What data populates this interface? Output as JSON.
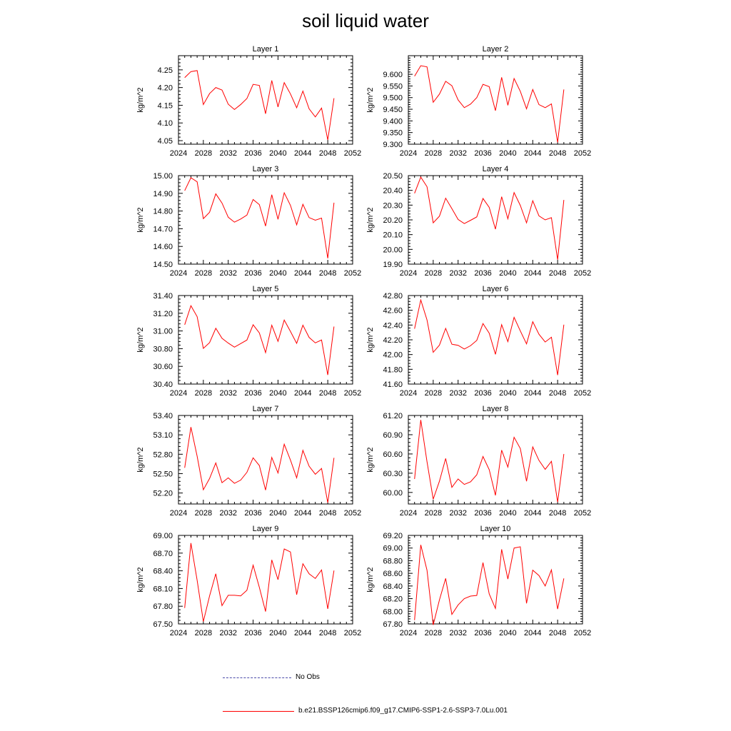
{
  "title": "soil liquid water",
  "colors": {
    "model_line": "#ff0000",
    "obs_line": "#4a4aa8",
    "axis": "#000000"
  },
  "legend": {
    "obs_label": "No Obs",
    "model_label": "b.e21.BSSP126cmip6.f09_g17.CMIP6-SSP1-2.6-SSP3-7.0Lu.001"
  },
  "chart_data": [
    {
      "type": "line",
      "title": "Layer 1",
      "ylabel": "kg/m^2",
      "xlim": [
        2024,
        2052
      ],
      "xticks": [
        2024,
        2028,
        2032,
        2036,
        2040,
        2044,
        2048,
        2052
      ],
      "ylim": [
        4.04,
        4.29
      ],
      "yticks": [
        "4.05",
        "4.10",
        "4.15",
        "4.20",
        "4.25"
      ],
      "x": [
        2025,
        2026,
        2027,
        2028,
        2029,
        2030,
        2031,
        2032,
        2033,
        2034,
        2035,
        2036,
        2037,
        2038,
        2039,
        2040,
        2041,
        2042,
        2043,
        2044,
        2045,
        2046,
        2047,
        2048,
        2049
      ],
      "series": [
        {
          "values": [
            4.228,
            4.245,
            4.248,
            4.152,
            4.183,
            4.2,
            4.193,
            4.153,
            4.138,
            4.152,
            4.169,
            4.209,
            4.206,
            4.126,
            4.22,
            4.145,
            4.214,
            4.182,
            4.143,
            4.19,
            4.14,
            4.117,
            4.142,
            4.052,
            4.17
          ]
        }
      ]
    },
    {
      "type": "line",
      "title": "Layer 2",
      "ylabel": "kg/m^2",
      "xlim": [
        2024,
        2052
      ],
      "xticks": [
        2024,
        2028,
        2032,
        2036,
        2040,
        2044,
        2048,
        2052
      ],
      "ylim": [
        9.3,
        9.68
      ],
      "yticks": [
        "9.300",
        "9.350",
        "9.400",
        "9.450",
        "9.500",
        "9.550",
        "9.600"
      ],
      "x": [
        2025,
        2026,
        2027,
        2028,
        2029,
        2030,
        2031,
        2032,
        2033,
        2034,
        2035,
        2036,
        2037,
        2038,
        2039,
        2040,
        2041,
        2042,
        2043,
        2044,
        2045,
        2046,
        2047,
        2048,
        2049
      ],
      "series": [
        {
          "values": [
            9.592,
            9.637,
            9.632,
            9.48,
            9.515,
            9.57,
            9.551,
            9.49,
            9.457,
            9.472,
            9.5,
            9.557,
            9.547,
            9.444,
            9.587,
            9.467,
            9.582,
            9.527,
            9.452,
            9.535,
            9.47,
            9.457,
            9.473,
            9.308,
            9.535
          ]
        }
      ]
    },
    {
      "type": "line",
      "title": "Layer 3",
      "ylabel": "kg/m^2",
      "xlim": [
        2024,
        2052
      ],
      "xticks": [
        2024,
        2028,
        2032,
        2036,
        2040,
        2044,
        2048,
        2052
      ],
      "ylim": [
        14.5,
        15.0
      ],
      "yticks": [
        "14.50",
        "14.60",
        "14.70",
        "14.80",
        "14.90",
        "15.00"
      ],
      "x": [
        2025,
        2026,
        2027,
        2028,
        2029,
        2030,
        2031,
        2032,
        2033,
        2034,
        2035,
        2036,
        2037,
        2038,
        2039,
        2040,
        2041,
        2042,
        2043,
        2044,
        2045,
        2046,
        2047,
        2048,
        2049
      ],
      "series": [
        {
          "values": [
            14.915,
            14.988,
            14.965,
            14.757,
            14.793,
            14.897,
            14.845,
            14.765,
            14.737,
            14.755,
            14.777,
            14.865,
            14.836,
            14.715,
            14.892,
            14.753,
            14.903,
            14.832,
            14.722,
            14.838,
            14.763,
            14.748,
            14.76,
            14.533,
            14.847
          ]
        }
      ]
    },
    {
      "type": "line",
      "title": "Layer 4",
      "ylabel": "kg/m^2",
      "xlim": [
        2024,
        2052
      ],
      "xticks": [
        2024,
        2028,
        2032,
        2036,
        2040,
        2044,
        2048,
        2052
      ],
      "ylim": [
        19.9,
        20.5
      ],
      "yticks": [
        "19.90",
        "20.00",
        "20.10",
        "20.20",
        "20.30",
        "20.40",
        "20.50"
      ],
      "x": [
        2025,
        2026,
        2027,
        2028,
        2029,
        2030,
        2031,
        2032,
        2033,
        2034,
        2035,
        2036,
        2037,
        2038,
        2039,
        2040,
        2041,
        2042,
        2043,
        2044,
        2045,
        2046,
        2047,
        2048,
        2049
      ],
      "series": [
        {
          "values": [
            20.38,
            20.49,
            20.425,
            20.18,
            20.225,
            20.347,
            20.276,
            20.203,
            20.175,
            20.197,
            20.22,
            20.345,
            20.285,
            20.137,
            20.357,
            20.207,
            20.385,
            20.298,
            20.18,
            20.33,
            20.227,
            20.2,
            20.215,
            19.93,
            20.335
          ]
        }
      ]
    },
    {
      "type": "line",
      "title": "Layer 5",
      "ylabel": "kg/m^2",
      "xlim": [
        2024,
        2052
      ],
      "xticks": [
        2024,
        2028,
        2032,
        2036,
        2040,
        2044,
        2048,
        2052
      ],
      "ylim": [
        30.4,
        31.4
      ],
      "yticks": [
        "30.40",
        "30.60",
        "30.80",
        "31.00",
        "31.20",
        "31.40"
      ],
      "x": [
        2025,
        2026,
        2027,
        2028,
        2029,
        2030,
        2031,
        2032,
        2033,
        2034,
        2035,
        2036,
        2037,
        2038,
        2039,
        2040,
        2041,
        2042,
        2043,
        2044,
        2045,
        2046,
        2047,
        2048,
        2049
      ],
      "series": [
        {
          "values": [
            31.07,
            31.285,
            31.162,
            30.803,
            30.868,
            31.03,
            30.917,
            30.863,
            30.817,
            30.857,
            30.897,
            31.07,
            30.978,
            30.755,
            31.065,
            30.882,
            31.123,
            30.995,
            30.86,
            31.065,
            30.927,
            30.865,
            30.898,
            30.503,
            31.05
          ]
        }
      ]
    },
    {
      "type": "line",
      "title": "Layer 6",
      "ylabel": "kg/m^2",
      "xlim": [
        2024,
        2052
      ],
      "xticks": [
        2024,
        2028,
        2032,
        2036,
        2040,
        2044,
        2048,
        2052
      ],
      "ylim": [
        41.6,
        42.8
      ],
      "yticks": [
        "41.60",
        "41.80",
        "42.00",
        "42.20",
        "42.40",
        "42.60",
        "42.80"
      ],
      "x": [
        2025,
        2026,
        2027,
        2028,
        2029,
        2030,
        2031,
        2032,
        2033,
        2034,
        2035,
        2036,
        2037,
        2038,
        2039,
        2040,
        2041,
        2042,
        2043,
        2044,
        2045,
        2046,
        2047,
        2048,
        2049
      ],
      "series": [
        {
          "values": [
            42.35,
            42.74,
            42.47,
            42.03,
            42.128,
            42.355,
            42.14,
            42.125,
            42.075,
            42.12,
            42.192,
            42.42,
            42.29,
            42.003,
            42.405,
            42.175,
            42.505,
            42.32,
            42.145,
            42.445,
            42.275,
            42.17,
            42.235,
            41.722,
            42.405
          ]
        }
      ]
    },
    {
      "type": "line",
      "title": "Layer 7",
      "ylabel": "kg/m^2",
      "xlim": [
        2024,
        2052
      ],
      "xticks": [
        2024,
        2028,
        2032,
        2036,
        2040,
        2044,
        2048,
        2052
      ],
      "ylim": [
        52.03,
        53.4
      ],
      "yticks": [
        "52.20",
        "52.50",
        "52.80",
        "53.10",
        "53.40"
      ],
      "x": [
        2025,
        2026,
        2027,
        2028,
        2029,
        2030,
        2031,
        2032,
        2033,
        2034,
        2035,
        2036,
        2037,
        2038,
        2039,
        2040,
        2041,
        2042,
        2043,
        2044,
        2045,
        2046,
        2047,
        2048,
        2049
      ],
      "series": [
        {
          "values": [
            52.59,
            53.22,
            52.77,
            52.25,
            52.425,
            52.665,
            52.36,
            52.435,
            52.35,
            52.4,
            52.52,
            52.745,
            52.625,
            52.245,
            52.75,
            52.51,
            52.955,
            52.71,
            52.435,
            52.86,
            52.615,
            52.49,
            52.58,
            52.05,
            52.745
          ]
        }
      ]
    },
    {
      "type": "line",
      "title": "Layer 8",
      "ylabel": "kg/m^2",
      "xlim": [
        2024,
        2052
      ],
      "xticks": [
        2024,
        2028,
        2032,
        2036,
        2040,
        2044,
        2048,
        2052
      ],
      "ylim": [
        59.82,
        61.2
      ],
      "yticks": [
        "60.00",
        "60.30",
        "60.60",
        "60.90",
        "61.20"
      ],
      "x": [
        2025,
        2026,
        2027,
        2028,
        2029,
        2030,
        2031,
        2032,
        2033,
        2034,
        2035,
        2036,
        2037,
        2038,
        2039,
        2040,
        2041,
        2042,
        2043,
        2044,
        2045,
        2046,
        2047,
        2048,
        2049
      ],
      "series": [
        {
          "values": [
            60.21,
            61.13,
            60.48,
            59.895,
            60.175,
            60.53,
            60.08,
            60.21,
            60.125,
            60.165,
            60.275,
            60.56,
            60.355,
            59.955,
            60.66,
            60.395,
            60.86,
            60.685,
            60.175,
            60.71,
            60.5,
            60.36,
            60.485,
            59.85,
            60.6
          ]
        }
      ]
    },
    {
      "type": "line",
      "title": "Layer 9",
      "ylabel": "kg/m^2",
      "xlim": [
        2024,
        2052
      ],
      "xticks": [
        2024,
        2028,
        2032,
        2036,
        2040,
        2044,
        2048,
        2052
      ],
      "ylim": [
        67.5,
        69.0
      ],
      "yticks": [
        "67.50",
        "67.80",
        "68.10",
        "68.40",
        "68.70",
        "69.00"
      ],
      "x": [
        2025,
        2026,
        2027,
        2028,
        2029,
        2030,
        2031,
        2032,
        2033,
        2034,
        2035,
        2036,
        2037,
        2038,
        2039,
        2040,
        2041,
        2042,
        2043,
        2044,
        2045,
        2046,
        2047,
        2048,
        2049
      ],
      "series": [
        {
          "values": [
            67.77,
            68.87,
            68.24,
            67.54,
            67.975,
            68.35,
            67.81,
            67.985,
            67.985,
            67.975,
            68.07,
            68.495,
            68.12,
            67.71,
            68.585,
            68.25,
            68.77,
            68.72,
            67.995,
            68.52,
            68.35,
            68.27,
            68.415,
            67.755,
            68.405
          ]
        }
      ]
    },
    {
      "type": "line",
      "title": "Layer 10",
      "ylabel": "kg/m^2",
      "xlim": [
        2024,
        2052
      ],
      "xticks": [
        2024,
        2028,
        2032,
        2036,
        2040,
        2044,
        2048,
        2052
      ],
      "ylim": [
        67.8,
        69.2
      ],
      "yticks": [
        "67.80",
        "68.00",
        "68.20",
        "68.40",
        "68.60",
        "68.80",
        "69.00",
        "69.20"
      ],
      "x": [
        2025,
        2026,
        2027,
        2028,
        2029,
        2030,
        2031,
        2032,
        2033,
        2034,
        2035,
        2036,
        2037,
        2038,
        2039,
        2040,
        2041,
        2042,
        2043,
        2044,
        2045,
        2046,
        2047,
        2048,
        2049
      ],
      "series": [
        {
          "values": [
            67.86,
            69.05,
            68.65,
            67.785,
            68.18,
            68.52,
            67.95,
            68.1,
            68.2,
            68.24,
            68.25,
            68.77,
            68.275,
            68.045,
            68.98,
            68.51,
            69.0,
            69.02,
            68.125,
            68.65,
            68.565,
            68.4,
            68.655,
            68.035,
            68.52
          ]
        }
      ]
    }
  ]
}
